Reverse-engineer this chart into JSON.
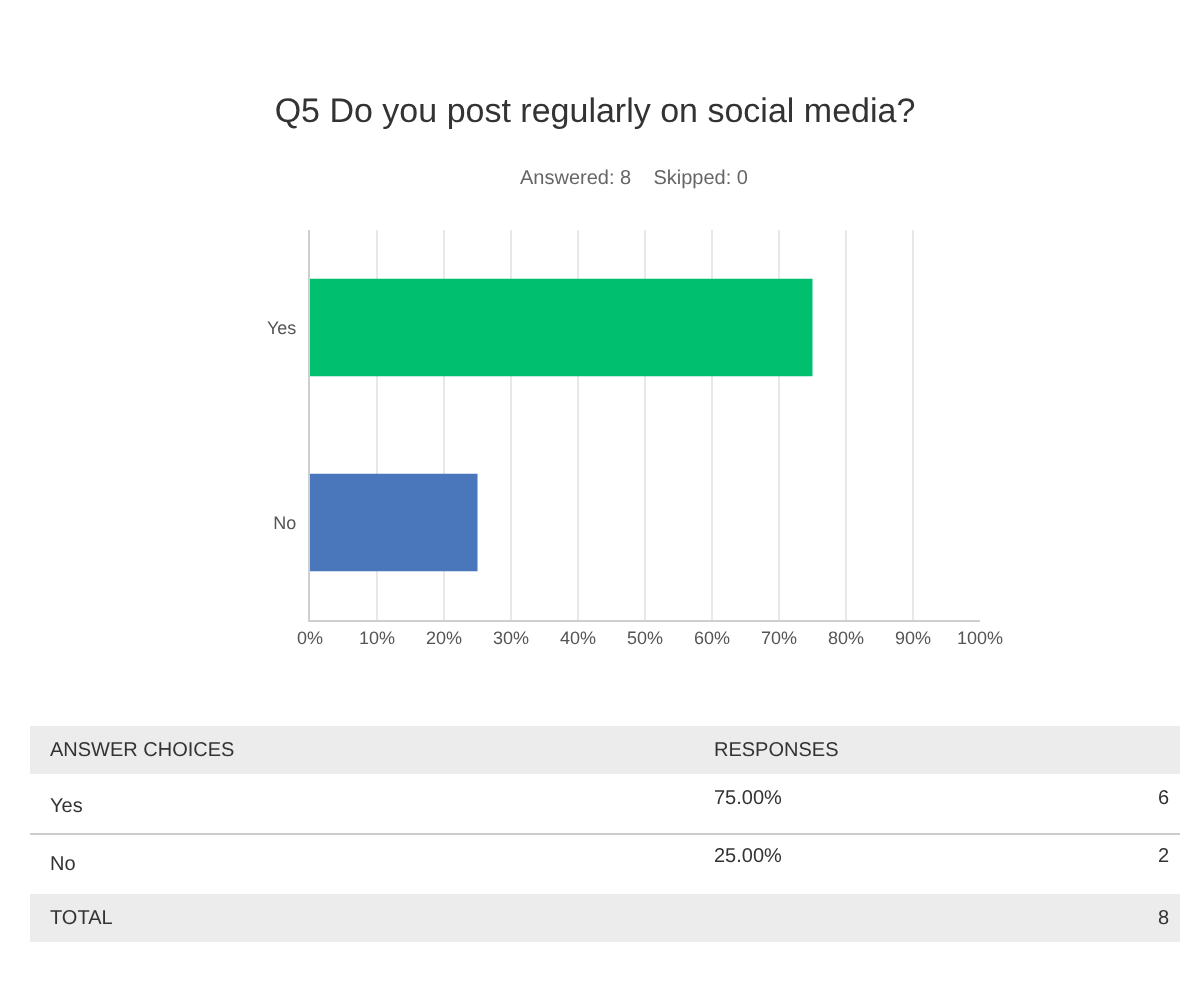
{
  "chart_data": {
    "type": "bar",
    "orientation": "horizontal",
    "title": "Q5 Do you post regularly on social media?",
    "subtitle": "Answered: 8    Skipped: 0",
    "categories": [
      "Yes",
      "No"
    ],
    "values": [
      75,
      25
    ],
    "colors": [
      "#00bf6f",
      "#4a76bb"
    ],
    "xlim": [
      0,
      100
    ],
    "xticks": [
      {
        "value": 0,
        "label": "0%"
      },
      {
        "value": 10,
        "label": "10%"
      },
      {
        "value": 20,
        "label": "20%"
      },
      {
        "value": 30,
        "label": "30%"
      },
      {
        "value": 40,
        "label": "40%"
      },
      {
        "value": 50,
        "label": "50%"
      },
      {
        "value": 60,
        "label": "60%"
      },
      {
        "value": 70,
        "label": "70%"
      },
      {
        "value": 80,
        "label": "80%"
      },
      {
        "value": 90,
        "label": "90%"
      },
      {
        "value": 100,
        "label": "100%"
      }
    ],
    "grid": "x",
    "legend": false,
    "annotations": [
      "ANSWER CHOICES",
      "RESPONSES",
      "75.00%",
      "6",
      "25.00%",
      "2",
      "TOTAL",
      "8"
    ]
  }
}
